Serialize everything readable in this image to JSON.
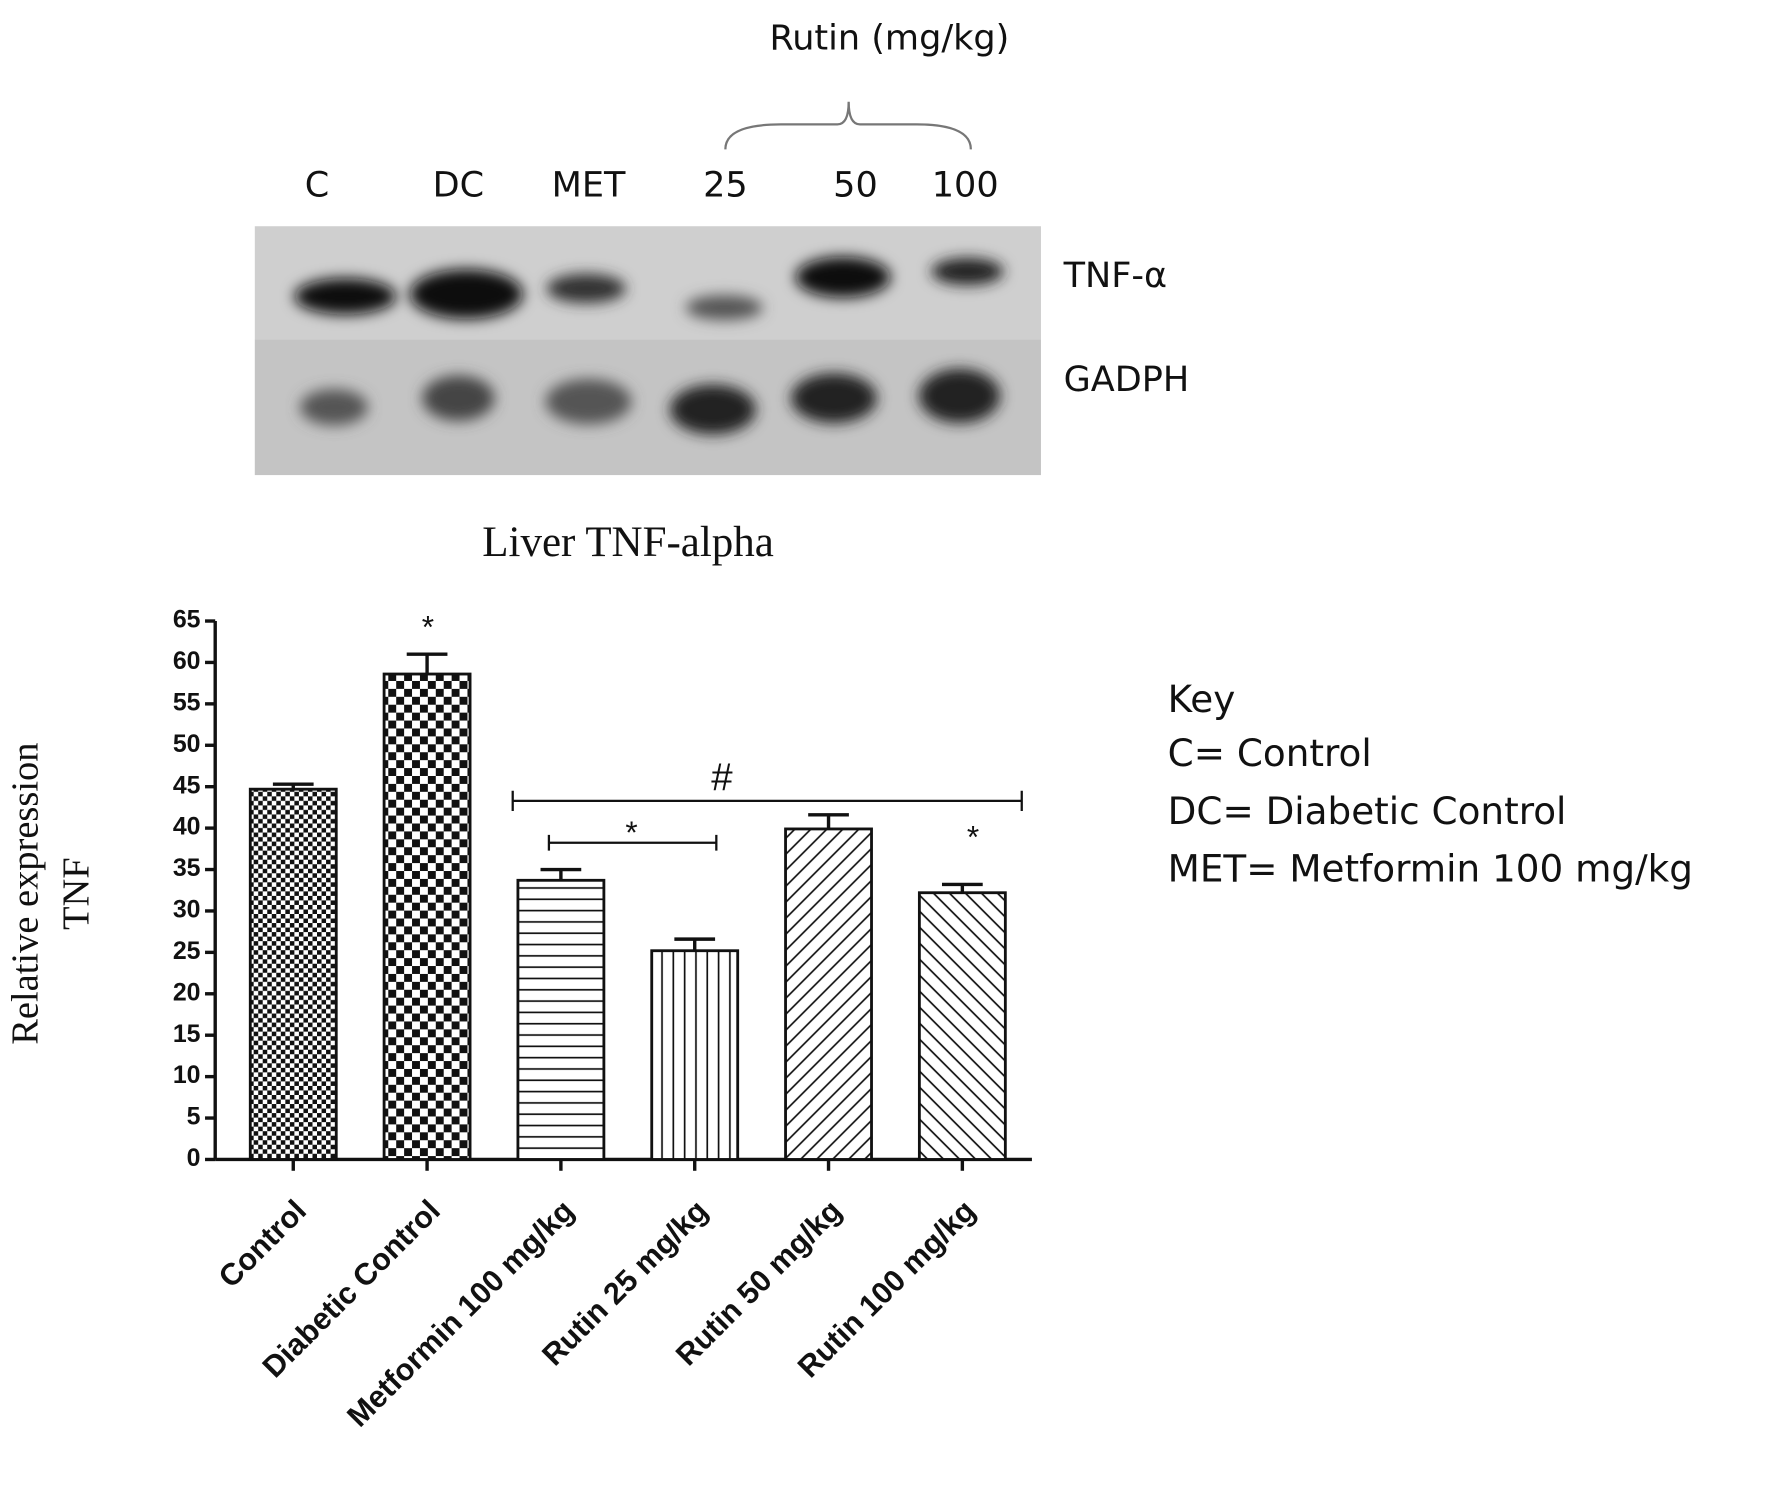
{
  "blot": {
    "group_label": "Rutin (mg/kg)",
    "lanes": [
      "C",
      "DC",
      "MET",
      "25",
      "50",
      "100"
    ],
    "bands": [
      "TNF-α",
      "GADPH"
    ]
  },
  "chart_data": {
    "type": "bar",
    "title": "Liver TNF-alpha",
    "y_label": [
      "Relative expression",
      "TNF"
    ],
    "categories": [
      "Control",
      "Diabetic Control",
      "Metformin 100 mg/kg",
      "Rutin 25 mg/kg",
      "Rutin 50 mg/kg",
      "Rutin 100 mg/kg"
    ],
    "values": [
      44.7,
      58.6,
      33.7,
      25.2,
      39.9,
      32.2
    ],
    "errors": [
      0.6,
      2.4,
      1.3,
      1.4,
      1.7,
      1.0
    ],
    "ylim": [
      0,
      65
    ],
    "yticks": [
      0,
      5,
      10,
      15,
      20,
      25,
      30,
      35,
      40,
      45,
      50,
      55,
      60,
      65
    ],
    "annotations": [
      "*",
      "#",
      "*",
      "*"
    ]
  },
  "key": {
    "title": "Key",
    "items": [
      "C= Control",
      "DC= Diabetic Control",
      "MET= Metformin 100 mg/kg"
    ]
  }
}
